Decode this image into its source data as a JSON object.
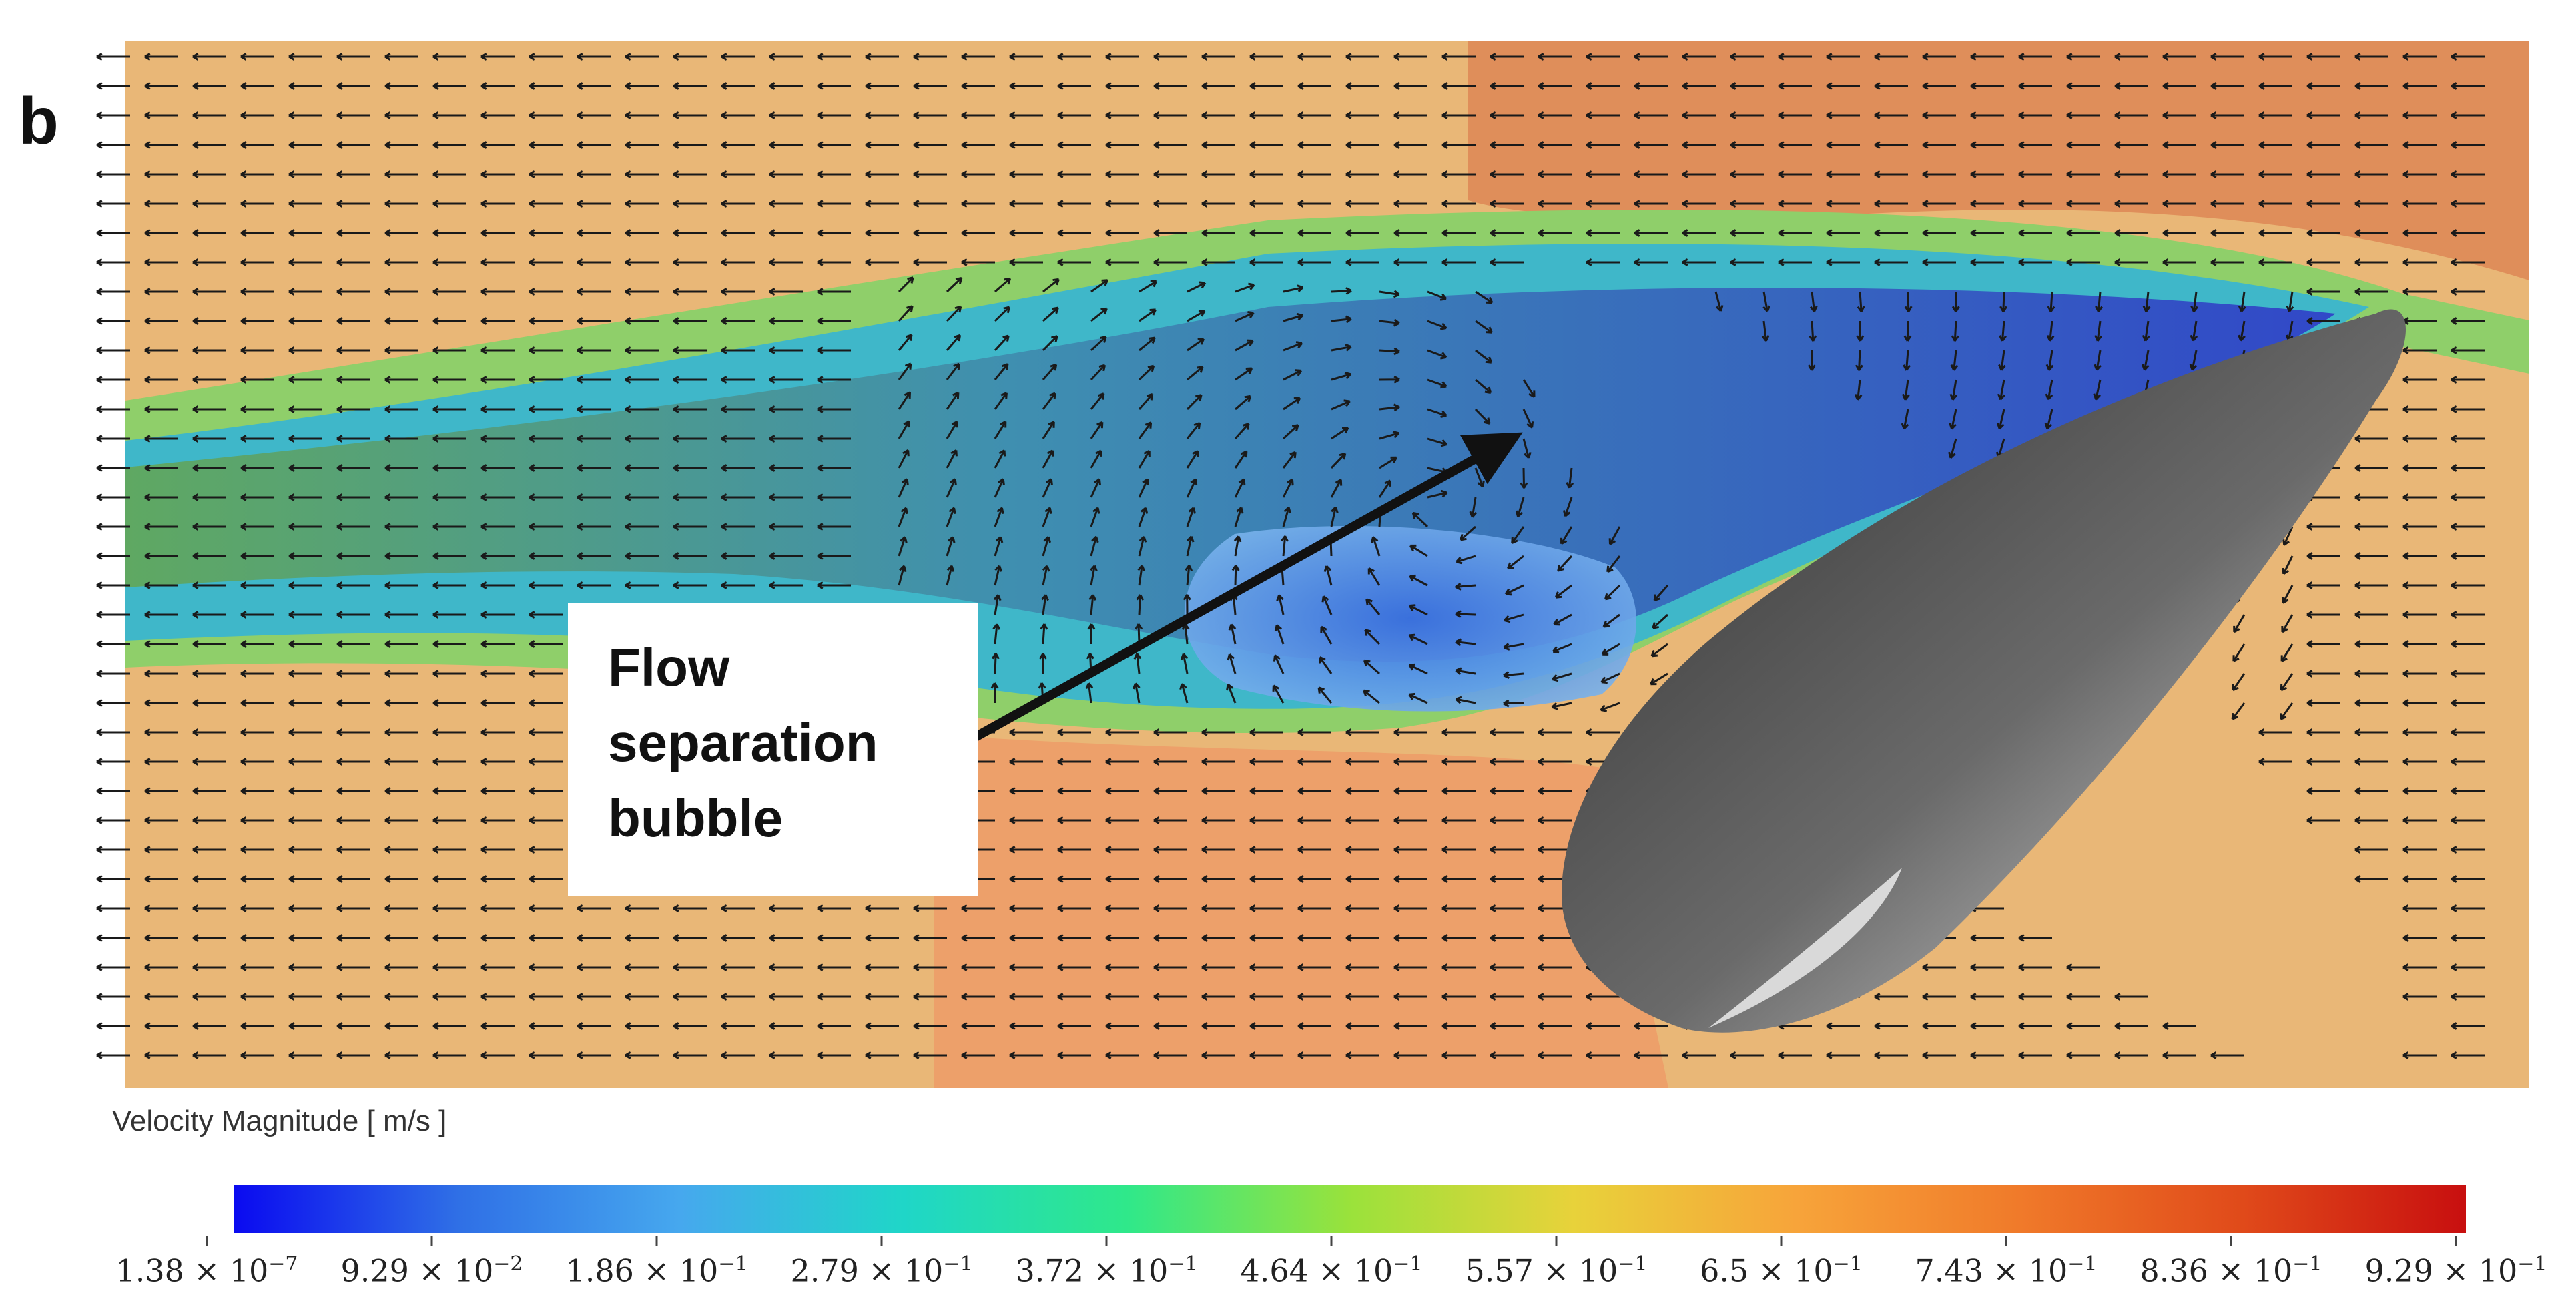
{
  "figure": {
    "panel_label": "b",
    "callout_lines": [
      "Flow",
      "separation",
      "bubble"
    ]
  },
  "colorbar": {
    "title": "Velocity Magnitude [ m/s ]",
    "unit": "m/s",
    "ticks": [
      {
        "value": 1.38e-07,
        "mantissa": "1.38",
        "exponent": "−7"
      },
      {
        "value": 0.0929,
        "mantissa": "9.29",
        "exponent": "−2"
      },
      {
        "value": 0.186,
        "mantissa": "1.86",
        "exponent": "−1"
      },
      {
        "value": 0.279,
        "mantissa": "2.79",
        "exponent": "−1"
      },
      {
        "value": 0.372,
        "mantissa": "3.72",
        "exponent": "−1"
      },
      {
        "value": 0.464,
        "mantissa": "4.64",
        "exponent": "−1"
      },
      {
        "value": 0.557,
        "mantissa": "5.57",
        "exponent": "−1"
      },
      {
        "value": 0.65,
        "mantissa": "6.5",
        "exponent": "−1"
      },
      {
        "value": 0.743,
        "mantissa": "7.43",
        "exponent": "−1"
      },
      {
        "value": 0.836,
        "mantissa": "8.36",
        "exponent": "−1"
      },
      {
        "value": 0.929,
        "mantissa": "9.29",
        "exponent": "−1"
      }
    ],
    "colors": [
      "#0a0af0",
      "#2f6fe6",
      "#46a8ee",
      "#1fd6c8",
      "#2fe88a",
      "#9ae23b",
      "#e8d23a",
      "#f7a43a",
      "#f07a2a",
      "#e04a1a",
      "#c80f0f"
    ]
  },
  "field_colors": {
    "freestream": "#e9b777",
    "upper_band": "#df8e5a",
    "wake_green": "#8fcf6a",
    "wake_blue": "#3e55d6",
    "bubble": "#6aa0ea",
    "foil_dark": "#3a3a3a",
    "foil_light": "#d8d8d8"
  }
}
